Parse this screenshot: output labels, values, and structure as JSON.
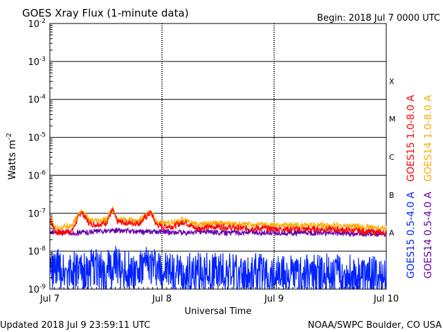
{
  "chart_data": {
    "type": "line",
    "title": "GOES Xray Flux (1-minute data)",
    "begin_label": "Begin:  2018 Jul 7 0000 UTC",
    "xlabel": "Universal Time",
    "ylabel": "Watts m",
    "ylabel_superscript": "-2",
    "y_scale": "log",
    "ylim": [
      1e-09,
      0.01
    ],
    "y_ticks": [
      {
        "base": "10",
        "exp": "-2"
      },
      {
        "base": "10",
        "exp": "-3"
      },
      {
        "base": "10",
        "exp": "-4"
      },
      {
        "base": "10",
        "exp": "-5"
      },
      {
        "base": "10",
        "exp": "-6"
      },
      {
        "base": "10",
        "exp": "-7"
      },
      {
        "base": "10",
        "exp": "-8"
      },
      {
        "base": "10",
        "exp": "-9"
      }
    ],
    "x_ticks": [
      "Jul 7",
      "Jul 8",
      "Jul 9",
      "Jul 10"
    ],
    "xlim_days": [
      0,
      3
    ],
    "flare_classes": [
      {
        "label": "X",
        "level": 0.0001
      },
      {
        "label": "M",
        "level": 1e-05
      },
      {
        "label": "C",
        "level": 1e-06
      },
      {
        "label": "B",
        "level": 1e-07
      },
      {
        "label": "A",
        "level": 1e-08
      }
    ],
    "grid": true,
    "legend_position": "right",
    "series": [
      {
        "name": "GOES15 1.0-8.0 A",
        "color": "#ff0000",
        "band": "long",
        "x": [
          0,
          0.05,
          0.1,
          0.2,
          0.28,
          0.35,
          0.4,
          0.5,
          0.56,
          0.6,
          0.7,
          0.8,
          0.9,
          0.95,
          1.0,
          1.1,
          1.2,
          1.3,
          1.5,
          1.7,
          1.9,
          2.1,
          2.3,
          2.5,
          2.7,
          2.9,
          3.0
        ],
        "y": [
          7e-08,
          3.2e-08,
          3e-08,
          3.5e-08,
          1.1e-07,
          5.5e-08,
          5e-08,
          5.5e-08,
          1.2e-07,
          6e-08,
          5.5e-08,
          5.5e-08,
          1.05e-07,
          5e-08,
          4.5e-08,
          4.5e-08,
          6e-08,
          4e-08,
          4.5e-08,
          4e-08,
          4e-08,
          3.8e-08,
          3.8e-08,
          3.8e-08,
          3.5e-08,
          3.2e-08,
          3e-08
        ]
      },
      {
        "name": "GOES14 1.0-8.0 A",
        "color": "#ffaa00",
        "band": "long",
        "x": [
          0,
          0.05,
          0.1,
          0.2,
          0.28,
          0.35,
          0.4,
          0.5,
          0.56,
          0.6,
          0.7,
          0.8,
          0.9,
          0.95,
          1.0,
          1.1,
          1.2,
          1.3,
          1.5,
          1.7,
          1.9,
          2.1,
          2.3,
          2.5,
          2.7,
          2.9,
          3.0
        ],
        "y": [
          7.5e-08,
          4e-08,
          4.2e-08,
          5e-08,
          1.2e-07,
          6.5e-08,
          6e-08,
          6.5e-08,
          1.3e-07,
          7e-08,
          6.5e-08,
          6.5e-08,
          1.15e-07,
          6e-08,
          5.5e-08,
          5.5e-08,
          7e-08,
          5e-08,
          5.5e-08,
          5e-08,
          5e-08,
          4.8e-08,
          4.8e-08,
          4.8e-08,
          4.5e-08,
          4.2e-08,
          4e-08
        ]
      },
      {
        "name": "GOES15 0.5-4.0 A",
        "color": "#0022ff",
        "band": "short",
        "x": [
          0,
          0.1,
          0.2,
          0.3,
          0.4,
          0.5,
          0.6,
          0.7,
          0.8,
          0.9,
          1.0,
          1.2,
          1.4,
          1.6,
          1.8,
          2.0,
          2.2,
          2.4,
          2.6,
          2.8,
          3.0
        ],
        "y": [
          3e-09,
          3.5e-09,
          3e-09,
          2.5e-09,
          3.5e-09,
          3e-09,
          4e-09,
          3e-09,
          3e-09,
          4.5e-09,
          3e-09,
          2.5e-09,
          3e-09,
          2.5e-09,
          2.5e-09,
          2.5e-09,
          2.2e-09,
          2.5e-09,
          2.5e-09,
          2.2e-09,
          2e-09
        ]
      },
      {
        "name": "GOES14 0.5-4.0 A",
        "color": "#6600aa",
        "band": "short",
        "x": [
          0,
          0.2,
          0.4,
          0.6,
          0.8,
          1.0,
          1.2,
          1.4,
          1.6,
          1.8,
          2.0,
          2.2,
          2.4,
          2.6,
          2.8,
          3.0
        ],
        "y": [
          3.2e-08,
          3e-08,
          3.3e-08,
          3.5e-08,
          3.2e-08,
          3.3e-08,
          3e-08,
          3.3e-08,
          3e-08,
          3.2e-08,
          3e-08,
          3e-08,
          3e-08,
          3e-08,
          2.8e-08,
          2.8e-08
        ]
      }
    ]
  },
  "footer": {
    "updated": "Updated 2018 Jul  9 23:59:11 UTC",
    "credit": "NOAA/SWPC Boulder, CO USA"
  }
}
